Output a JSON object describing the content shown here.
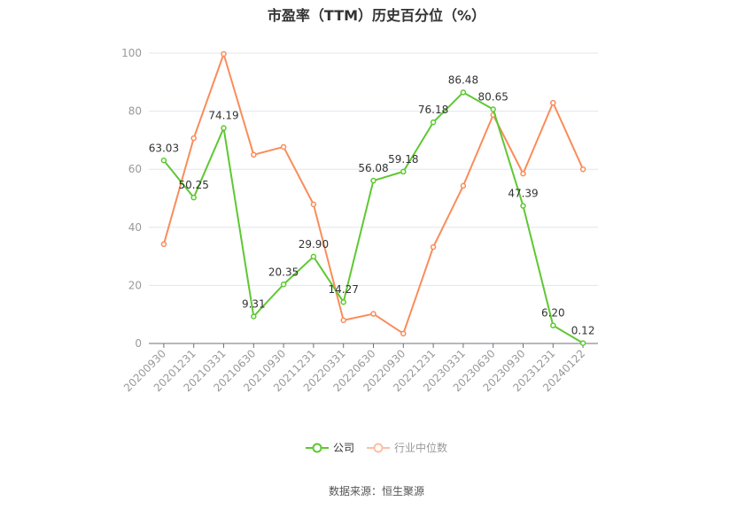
{
  "title": "市盈率（TTM）历史百分位（%）",
  "source": "数据来源：恒生聚源",
  "legend": {
    "company_label": "公司",
    "industry_label": "行业中位数"
  },
  "colors": {
    "company": "#5ec832",
    "industry": "#fa8c5a",
    "industry_legend": "#fbbfa5",
    "grid": "#e0e6f1",
    "axis": "#6e7079",
    "tick_label": "#999999",
    "data_label": "#333333"
  },
  "chart_data": {
    "type": "line",
    "title": "市盈率（TTM）历史百分位（%）",
    "xlabel": "",
    "ylabel": "",
    "ylim": [
      0,
      100
    ],
    "yticks": [
      0,
      20,
      40,
      60,
      80,
      100
    ],
    "grid": true,
    "legend_position": "bottom",
    "categories": [
      "20200930",
      "20201231",
      "20210331",
      "20210630",
      "20210930",
      "20211231",
      "20220331",
      "20220630",
      "20220930",
      "20221231",
      "20230331",
      "20230630",
      "20230930",
      "20231231",
      "20240122"
    ],
    "series": [
      {
        "name": "公司",
        "values": [
          63.03,
          50.25,
          74.19,
          9.31,
          20.35,
          29.9,
          14.27,
          56.08,
          59.18,
          76.18,
          86.48,
          80.65,
          47.39,
          6.2,
          0.12
        ],
        "labels": [
          "63.03",
          "50.25",
          "74.19",
          "9.31",
          "20.35",
          "29.90",
          "14.27",
          "56.08",
          "59.18",
          "76.18",
          "86.48",
          "80.65",
          "47.39",
          "6.20",
          "0.12"
        ],
        "show_labels": true
      },
      {
        "name": "行业中位数",
        "values": [
          34.2,
          70.7,
          99.7,
          65.0,
          67.7,
          47.9,
          8.0,
          10.2,
          3.4,
          33.2,
          54.3,
          78.7,
          58.5,
          82.9,
          60.0
        ],
        "show_labels": false
      }
    ]
  }
}
